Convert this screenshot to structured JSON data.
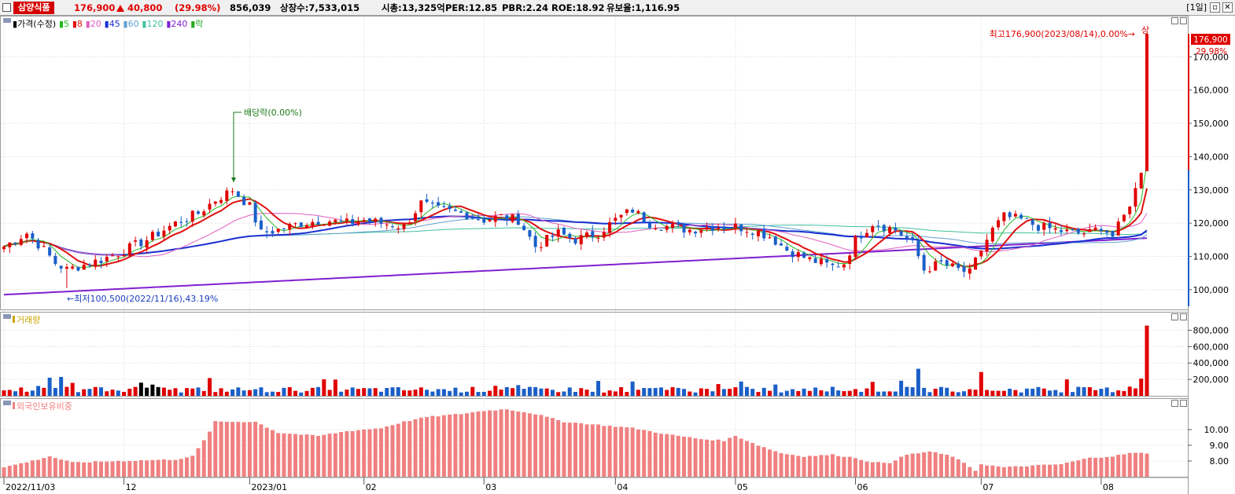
{
  "header": {
    "stock_name": "삼양식품",
    "price": "176,900",
    "change": "40,800",
    "change_pct": "(29.98%)",
    "volume": "856,039",
    "shares": "상장수:7,533,015",
    "mcap": "시총:13,325억",
    "per": "PER:12.85",
    "pbr": "PBR:2.24",
    "roe": "ROE:18.92",
    "retention": "유보율:1,116.95",
    "period": "[1일]",
    "min_icon": "minimize-icon",
    "close_icon": "close-icon"
  },
  "colors": {
    "up": "#e00000",
    "down": "#1a5fc8",
    "ma5": "#22bb22",
    "ma8": "#e01010",
    "ma20": "#e060c0",
    "ma45": "#1a2fd0",
    "ma60": "#60a0d0",
    "ma120": "#40c0a0",
    "ma240": "#8020d0",
    "foreign": "#f08080"
  },
  "price_panel": {
    "legend": [
      {
        "label": "가격(수정)",
        "color": "#000000"
      },
      {
        "label": "5",
        "color": "#22bb22"
      },
      {
        "label": "8",
        "color": "#e01010"
      },
      {
        "label": "20",
        "color": "#e060c0"
      },
      {
        "label": "45",
        "color": "#1a2fd0"
      },
      {
        "label": "60",
        "color": "#60a0d0"
      },
      {
        "label": "120",
        "color": "#40c0a0"
      },
      {
        "label": "240",
        "color": "#8020d0"
      },
      {
        "label": "락",
        "color": "#22aa22"
      }
    ],
    "annot_high": "최고176,900(2023/08/14),0.00%→",
    "annot_low": "←최저100,500(2022/11/16),43.19%",
    "annot_div": "배당락(0.00%)",
    "annot_sang": "상",
    "last_price": "176,900",
    "last_pct": "29.98%"
  },
  "volume_panel": {
    "title": "거래량"
  },
  "foreign_panel": {
    "title": "외국인보유비중"
  },
  "chart_data": [
    {
      "type": "candlestick",
      "title": "",
      "ylim": [
        95000,
        180000
      ],
      "yticks": [
        "100,000",
        "110,000",
        "120,000",
        "130,000",
        "140,000",
        "150,000",
        "160,000",
        "170,000"
      ],
      "ytick_values": [
        100000,
        110000,
        120000,
        130000,
        140000,
        150000,
        160000,
        170000
      ],
      "xlabels": [
        {
          "label": "2022/11/03",
          "index": 0
        },
        {
          "label": "12",
          "index": 21
        },
        {
          "label": "2023/01",
          "index": 43
        },
        {
          "label": "02",
          "index": 63
        },
        {
          "label": "03",
          "index": 84
        },
        {
          "label": "04",
          "index": 107
        },
        {
          "label": "05",
          "index": 128
        },
        {
          "label": "06",
          "index": 149
        },
        {
          "label": "07",
          "index": 171
        },
        {
          "label": "08",
          "index": 192
        }
      ],
      "close_path": [
        [
          0,
          113000
        ],
        [
          4,
          117000
        ],
        [
          7,
          112000
        ],
        [
          9,
          108000
        ],
        [
          11,
          106000
        ],
        [
          13,
          107000
        ],
        [
          17,
          109000
        ],
        [
          20,
          111000
        ],
        [
          25,
          115000
        ],
        [
          30,
          120000
        ],
        [
          34,
          123000
        ],
        [
          37,
          127000
        ],
        [
          40,
          130000
        ],
        [
          43,
          125000
        ],
        [
          45,
          117000
        ],
        [
          48,
          118000
        ],
        [
          52,
          120000
        ],
        [
          56,
          121000
        ],
        [
          60,
          120000
        ],
        [
          63,
          121000
        ],
        [
          66,
          120000
        ],
        [
          70,
          119000
        ],
        [
          73,
          126000
        ],
        [
          76,
          124000
        ],
        [
          80,
          123000
        ],
        [
          84,
          121000
        ],
        [
          87,
          122000
        ],
        [
          90,
          121000
        ],
        [
          93,
          113000
        ],
        [
          97,
          117000
        ],
        [
          100,
          115000
        ],
        [
          104,
          117000
        ],
        [
          107,
          121000
        ],
        [
          110,
          124000
        ],
        [
          113,
          120000
        ],
        [
          116,
          119000
        ],
        [
          120,
          118000
        ],
        [
          124,
          119000
        ],
        [
          128,
          119000
        ],
        [
          131,
          118000
        ],
        [
          134,
          116000
        ],
        [
          137,
          112000
        ],
        [
          141,
          109000
        ],
        [
          145,
          107000
        ],
        [
          147,
          108000
        ],
        [
          149,
          115000
        ],
        [
          152,
          120000
        ],
        [
          156,
          118000
        ],
        [
          159,
          114000
        ],
        [
          161,
          106000
        ],
        [
          164,
          108000
        ],
        [
          167,
          106000
        ],
        [
          169,
          105000
        ],
        [
          171,
          112000
        ],
        [
          173,
          118000
        ],
        [
          175,
          122000
        ],
        [
          178,
          121000
        ],
        [
          181,
          119000
        ],
        [
          184,
          118000
        ],
        [
          187,
          117000
        ],
        [
          190,
          117000
        ],
        [
          192,
          119000
        ],
        [
          194,
          116000
        ],
        [
          196,
          122000
        ],
        [
          198,
          130000
        ],
        [
          199,
          136100
        ],
        [
          200,
          176900
        ]
      ],
      "high": {
        "value": 176900,
        "date": "2023/08/14"
      },
      "low": {
        "value": 100500,
        "date": "2022/11/16"
      }
    },
    {
      "type": "bar",
      "title": "",
      "ylim": [
        0,
        900000
      ],
      "yticks": [
        "200,000",
        "400,000",
        "600,000",
        "800,000"
      ],
      "ytick_values": [
        200000,
        400000,
        600000,
        800000
      ],
      "last_value": 856039
    },
    {
      "type": "bar",
      "title": "",
      "ylim": [
        7.0,
        11.5
      ],
      "yticks": [
        "8.00",
        "9.00",
        "10.00"
      ],
      "ytick_values": [
        8,
        9,
        10
      ],
      "path": [
        [
          0,
          7.6
        ],
        [
          6,
          8.1
        ],
        [
          8,
          8.3
        ],
        [
          12,
          7.9
        ],
        [
          20,
          8.0
        ],
        [
          30,
          8.1
        ],
        [
          33,
          8.3
        ],
        [
          35,
          9.3
        ],
        [
          37,
          10.5
        ],
        [
          41,
          10.5
        ],
        [
          44,
          10.5
        ],
        [
          48,
          9.8
        ],
        [
          55,
          9.6
        ],
        [
          60,
          9.9
        ],
        [
          66,
          10.1
        ],
        [
          70,
          10.5
        ],
        [
          74,
          10.8
        ],
        [
          80,
          11.0
        ],
        [
          84,
          11.2
        ],
        [
          88,
          11.3
        ],
        [
          93,
          11.0
        ],
        [
          98,
          10.5
        ],
        [
          104,
          10.3
        ],
        [
          110,
          10.1
        ],
        [
          116,
          9.7
        ],
        [
          122,
          9.4
        ],
        [
          126,
          9.3
        ],
        [
          128,
          9.6
        ],
        [
          132,
          9.0
        ],
        [
          136,
          8.5
        ],
        [
          140,
          8.3
        ],
        [
          145,
          8.4
        ],
        [
          149,
          8.2
        ],
        [
          152,
          7.9
        ],
        [
          155,
          7.9
        ],
        [
          158,
          8.4
        ],
        [
          162,
          8.6
        ],
        [
          166,
          8.3
        ],
        [
          170,
          7.4
        ],
        [
          171,
          7.8
        ],
        [
          175,
          7.6
        ],
        [
          180,
          7.7
        ],
        [
          185,
          7.8
        ],
        [
          190,
          8.2
        ],
        [
          194,
          8.3
        ],
        [
          197,
          8.5
        ],
        [
          200,
          8.5
        ]
      ]
    }
  ]
}
